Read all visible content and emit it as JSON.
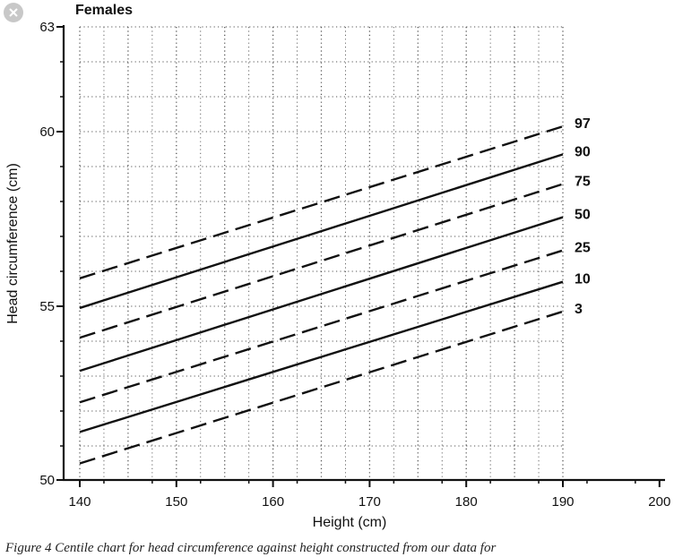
{
  "caption": "Figure 4    Centile chart for head circumference against height constructed from our data for",
  "icons": {
    "close": "close-icon"
  },
  "chart_data": {
    "type": "line",
    "title": "Females",
    "xlabel": "Height (cm)",
    "ylabel": "Head circumference (cm)",
    "xlim": [
      140,
      200
    ],
    "ylim": [
      50,
      63
    ],
    "x_ticks": [
      140,
      150,
      160,
      170,
      180,
      190,
      200
    ],
    "y_ticks": [
      50,
      55,
      60,
      63
    ],
    "grid": "dotted",
    "series": [
      {
        "name": "97",
        "style": "dashed",
        "x": [
          140,
          190
        ],
        "y": [
          55.8,
          60.15
        ]
      },
      {
        "name": "90",
        "style": "solid",
        "x": [
          140,
          190
        ],
        "y": [
          54.95,
          59.35
        ]
      },
      {
        "name": "75",
        "style": "dashed",
        "x": [
          140,
          190
        ],
        "y": [
          54.1,
          58.5
        ]
      },
      {
        "name": "50",
        "style": "solid",
        "x": [
          140,
          190
        ],
        "y": [
          53.15,
          57.55
        ]
      },
      {
        "name": "25",
        "style": "dashed",
        "x": [
          140,
          190
        ],
        "y": [
          52.25,
          56.6
        ]
      },
      {
        "name": "10",
        "style": "solid",
        "x": [
          140,
          190
        ],
        "y": [
          51.4,
          55.7
        ]
      },
      {
        "name": "3",
        "style": "dashed",
        "x": [
          140,
          190
        ],
        "y": [
          50.5,
          54.85
        ]
      }
    ]
  }
}
